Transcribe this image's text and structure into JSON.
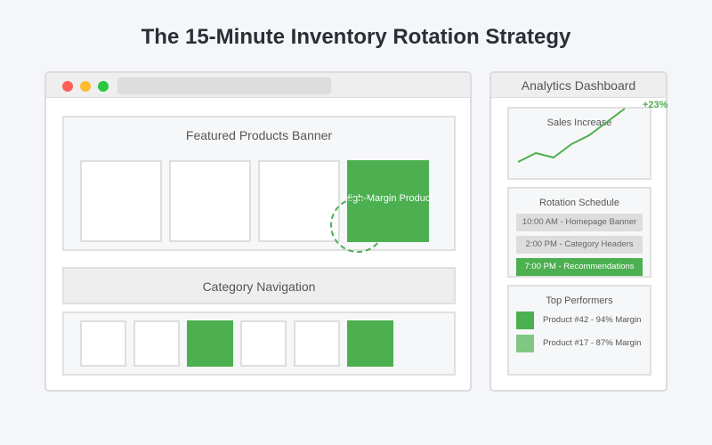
{
  "title": "The 15-Minute Inventory Rotation Strategy",
  "colors": {
    "accent": "#4caf50",
    "accent_light": "#81c784",
    "background": "#f4f6f9"
  },
  "browser": {
    "banner": {
      "label": "Featured Products Banner",
      "highlight_label": "High-Margin Product"
    },
    "category_nav": {
      "label": "Category Navigation"
    }
  },
  "analytics": {
    "header": "Analytics Dashboard",
    "sales": {
      "title": "Sales Increase",
      "badge": "+23%"
    },
    "rotation": {
      "title": "Rotation Schedule",
      "items": [
        "10:00 AM - Homepage Banner",
        "2:00 PM - Category Headers",
        "7:00 PM - Recommendations"
      ]
    },
    "top_performers": {
      "title": "Top Performers",
      "items": [
        "Product #42 - 94% Margin",
        "Product #17 - 87% Margin"
      ]
    }
  }
}
